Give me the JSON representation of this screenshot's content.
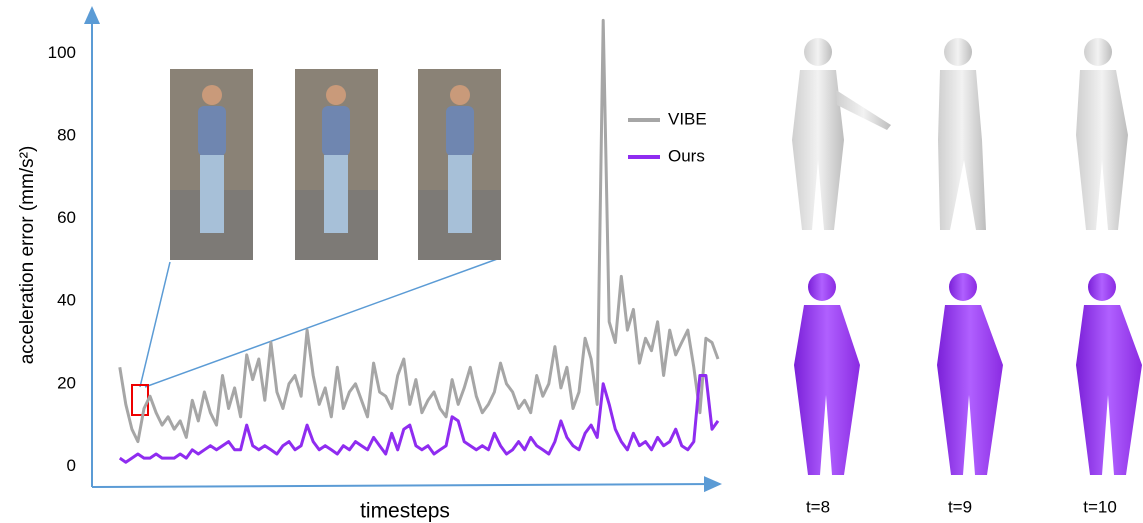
{
  "chart_data": {
    "type": "line",
    "y_label": "acceleration error (mm/s²)",
    "x_label": "timesteps",
    "x": [
      0,
      1,
      2,
      3,
      4,
      5,
      6,
      7,
      8,
      9,
      10,
      11,
      12,
      13,
      14,
      15,
      16,
      17,
      18,
      19,
      20,
      21,
      22,
      23,
      24,
      25,
      26,
      27,
      28,
      29,
      30,
      31,
      32,
      33,
      34,
      35,
      36,
      37,
      38,
      39,
      40,
      41,
      42,
      43,
      44,
      45,
      46,
      47,
      48,
      49,
      50,
      51,
      52,
      53,
      54,
      55,
      56,
      57,
      58,
      59,
      60,
      61,
      62,
      63,
      64,
      65,
      66,
      67,
      68,
      69,
      70,
      71,
      72,
      73,
      74,
      75,
      76,
      77,
      78,
      79,
      80,
      81,
      82,
      83,
      84,
      85,
      86,
      87,
      88,
      89,
      90,
      91,
      92,
      93,
      94,
      95,
      96,
      97,
      98,
      99
    ],
    "xlim": [
      -4.6,
      99
    ],
    "ylim": [
      -5,
      111
    ],
    "yticks": [
      0,
      20,
      40,
      60,
      80,
      100
    ],
    "grid": false,
    "series": [
      {
        "name": "VIBE",
        "color": "#a6a6a6",
        "values": [
          24,
          15,
          9,
          6,
          14,
          17,
          13,
          10,
          12,
          9,
          11,
          7,
          16,
          11,
          18,
          13,
          10,
          22,
          14,
          19,
          12,
          27,
          21,
          26,
          16,
          30,
          18,
          14,
          20,
          22,
          17,
          33,
          22,
          15,
          19,
          12,
          24,
          14,
          18,
          20,
          16,
          12,
          25,
          18,
          17,
          14,
          22,
          26,
          15,
          21,
          13,
          16,
          18,
          14,
          12,
          21,
          15,
          19,
          24,
          17,
          13,
          15,
          18,
          25,
          20,
          18,
          14,
          16,
          13,
          22,
          17,
          20,
          29,
          19,
          24,
          14,
          18,
          31,
          26,
          15,
          108,
          35,
          30,
          46,
          33,
          38,
          25,
          31,
          28,
          35,
          22,
          33,
          27,
          30,
          33,
          24,
          13,
          31,
          30,
          26
        ]
      },
      {
        "name": "Ours",
        "color": "#8f2cf0",
        "values": [
          2,
          1,
          2,
          3,
          2,
          2,
          3,
          2,
          2,
          2,
          3,
          2,
          4,
          3,
          4,
          5,
          4,
          5,
          6,
          4,
          4,
          10,
          5,
          4,
          5,
          4,
          3,
          5,
          6,
          4,
          5,
          10,
          6,
          4,
          5,
          4,
          3,
          5,
          4,
          6,
          5,
          4,
          7,
          5,
          3,
          8,
          4,
          9,
          10,
          5,
          4,
          5,
          3,
          4,
          5,
          12,
          11,
          6,
          5,
          4,
          5,
          4,
          8,
          5,
          3,
          4,
          6,
          4,
          7,
          5,
          4,
          3,
          6,
          11,
          7,
          5,
          4,
          8,
          10,
          7,
          20,
          15,
          9,
          6,
          4,
          8,
          5,
          6,
          4,
          7,
          5,
          6,
          9,
          5,
          4,
          6,
          22,
          22,
          9,
          11
        ]
      }
    ],
    "frame_labels": [
      "t=8",
      "t=9",
      "t=10"
    ]
  }
}
